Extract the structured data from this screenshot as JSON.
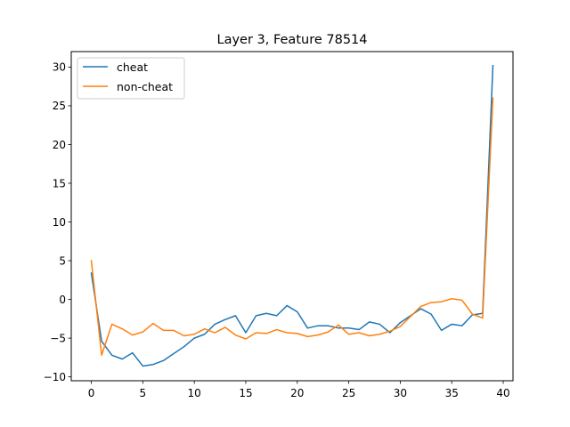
{
  "chart_data": {
    "type": "line",
    "title": "Layer 3, Feature 78514",
    "xlabel": "",
    "ylabel": "",
    "xlim": [
      -1.95,
      40.95
    ],
    "ylim": [
      -10.5,
      32.0
    ],
    "xticks": [
      0,
      5,
      10,
      15,
      20,
      25,
      30,
      35,
      40
    ],
    "yticks": [
      -10,
      -5,
      0,
      5,
      10,
      15,
      20,
      25,
      30
    ],
    "grid": false,
    "legend_position": "upper-left",
    "x": [
      0,
      1,
      2,
      3,
      4,
      5,
      6,
      7,
      8,
      9,
      10,
      11,
      12,
      13,
      14,
      15,
      16,
      17,
      18,
      19,
      20,
      21,
      22,
      23,
      24,
      25,
      26,
      27,
      28,
      29,
      30,
      31,
      32,
      33,
      34,
      35,
      36,
      37,
      38,
      39
    ],
    "series": [
      {
        "name": "cheat",
        "color": "#1f77b4",
        "values": [
          3.4,
          -5.4,
          -7.2,
          -7.7,
          -6.9,
          -8.6,
          -8.4,
          -7.9,
          -7.0,
          -6.1,
          -5.0,
          -4.5,
          -3.2,
          -2.6,
          -2.1,
          -4.3,
          -2.1,
          -1.8,
          -2.1,
          -0.8,
          -1.6,
          -3.7,
          -3.4,
          -3.4,
          -3.7,
          -3.7,
          -3.9,
          -2.9,
          -3.2,
          -4.3,
          -3.0,
          -2.1,
          -1.2,
          -1.9,
          -4.0,
          -3.2,
          -3.4,
          -2.0,
          -1.8,
          30.2
        ]
      },
      {
        "name": "non-cheat",
        "color": "#ff7f0e",
        "values": [
          5.0,
          -7.2,
          -3.2,
          -3.8,
          -4.6,
          -4.2,
          -3.1,
          -4.0,
          -4.0,
          -4.7,
          -4.5,
          -3.8,
          -4.3,
          -3.6,
          -4.6,
          -5.1,
          -4.3,
          -4.4,
          -3.9,
          -4.3,
          -4.4,
          -4.8,
          -4.6,
          -4.2,
          -3.3,
          -4.5,
          -4.3,
          -4.7,
          -4.5,
          -4.1,
          -3.5,
          -2.2,
          -0.9,
          -0.4,
          -0.3,
          0.1,
          -0.1,
          -1.9,
          -2.4,
          26.0
        ]
      }
    ]
  }
}
